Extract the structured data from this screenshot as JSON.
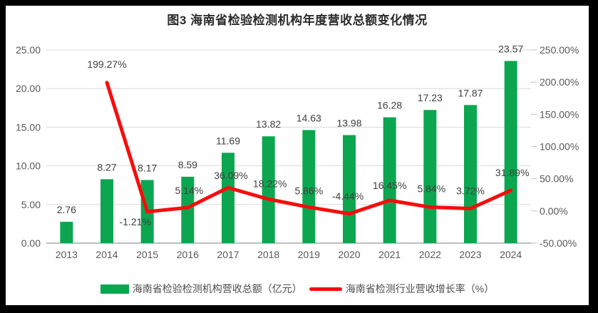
{
  "frame": {
    "background": "#000000",
    "chart_background": "#ffffff"
  },
  "chart_data": {
    "type": "bar+line",
    "title": "图3 海南省检验检测机构年度营收总额变化情况",
    "categories": [
      "2013",
      "2014",
      "2015",
      "2016",
      "2017",
      "2018",
      "2019",
      "2020",
      "2021",
      "2022",
      "2023",
      "2024"
    ],
    "series": [
      {
        "name": "海南省检验检测机构营收总额（亿元）",
        "type": "bar",
        "color": "#0CA650",
        "axis": "left",
        "values": [
          2.76,
          8.27,
          8.17,
          8.59,
          11.69,
          13.82,
          14.63,
          13.98,
          16.28,
          17.23,
          17.87,
          23.57
        ],
        "labels": [
          "2.76",
          "8.27",
          "8.17",
          "8.59",
          "11.69",
          "13.82",
          "14.63",
          "13.98",
          "16.28",
          "17.23",
          "17.87",
          "23.57"
        ]
      },
      {
        "name": "海南省检测行业营收增长率（%）",
        "type": "line",
        "color": "#F70D0D",
        "axis": "right",
        "values": [
          null,
          199.27,
          -1.21,
          5.14,
          36.09,
          18.22,
          5.86,
          -4.44,
          16.45,
          5.84,
          3.72,
          31.89
        ],
        "labels": [
          null,
          "199.27%",
          "-1.21%",
          "5.14%",
          "36.09%",
          "18.22%",
          "5.86%",
          "-4.44%",
          "16.45%",
          "5.84%",
          "3.72%",
          "31.89%"
        ]
      }
    ],
    "left_axis": {
      "min": 0,
      "max": 25,
      "tick_labels": [
        "0.00",
        "5.00",
        "10.00",
        "15.00",
        "20.00",
        "25.00"
      ]
    },
    "right_axis": {
      "min": -50,
      "max": 250,
      "tick_labels": [
        "-50.00%",
        "0.00%",
        "50.00%",
        "100.00%",
        "150.00%",
        "200.00%",
        "250.00%"
      ]
    },
    "grid": "horizontal",
    "legend_position": "bottom",
    "legend": [
      {
        "label": "海南省检验检测机构营收总额（亿元）",
        "color": "#0CA650",
        "marker": "bar"
      },
      {
        "label": "海南省检测行业营收增长率（%）",
        "color": "#F70D0D",
        "marker": "line"
      }
    ],
    "style_colors": {
      "gridline": "#D9D9D9",
      "axis_line": "#BFBFBF",
      "tick_text": "#595959",
      "data_label_text": "#404040"
    }
  }
}
